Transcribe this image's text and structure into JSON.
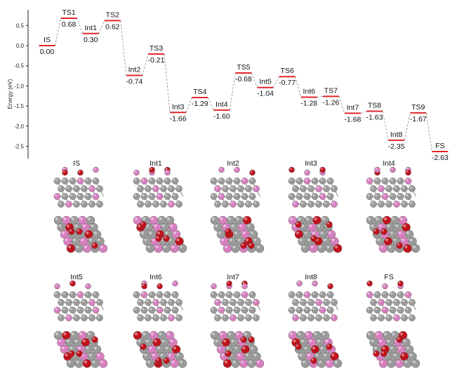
{
  "chart_data": {
    "type": "line",
    "ylabel": "Energy (eV)",
    "ylim": [
      -2.8,
      0.85
    ],
    "yticks": [
      0.5,
      0.0,
      -0.5,
      -1.0,
      -1.5,
      -2.0,
      -2.5
    ],
    "ytick_labels": [
      "0.5",
      "0.0",
      "-0.5",
      "-1.0",
      "-1.5",
      "-2.0",
      "-2.5"
    ],
    "grid": false,
    "levels": [
      {
        "name": "IS",
        "value": 0.0,
        "label": "0.00",
        "pos": 0
      },
      {
        "name": "TS1",
        "value": 0.68,
        "label": "0.68",
        "pos": 1
      },
      {
        "name": "Int1",
        "value": 0.3,
        "label": "0.30",
        "pos": 2
      },
      {
        "name": "TS2",
        "value": 0.62,
        "label": "0.62",
        "pos": 3
      },
      {
        "name": "Int2",
        "value": -0.74,
        "label": "-0.74",
        "pos": 4
      },
      {
        "name": "TS3",
        "value": -0.21,
        "label": "-0.21",
        "pos": 5
      },
      {
        "name": "Int3",
        "value": -1.66,
        "label": "-1.66",
        "pos": 6
      },
      {
        "name": "TS4",
        "value": -1.29,
        "label": "-1.29",
        "pos": 7
      },
      {
        "name": "Int4",
        "value": -1.6,
        "label": "-1.60",
        "pos": 8
      },
      {
        "name": "TS5",
        "value": -0.68,
        "label": "-0.68",
        "pos": 9
      },
      {
        "name": "Int5",
        "value": -1.04,
        "label": "-1.04",
        "pos": 10
      },
      {
        "name": "TS6",
        "value": -0.77,
        "label": "-0.77",
        "pos": 11
      },
      {
        "name": "Int6",
        "value": -1.28,
        "label": "-1.28",
        "pos": 12
      },
      {
        "name": "TS7",
        "value": -1.26,
        "label": "-1.26",
        "pos": 13
      },
      {
        "name": "Int7",
        "value": -1.68,
        "label": "-1.68",
        "pos": 14
      },
      {
        "name": "TS8",
        "value": -1.63,
        "label": "-1.63",
        "pos": 15
      },
      {
        "name": "Int8",
        "value": -2.35,
        "label": "-2.35",
        "pos": 16
      },
      {
        "name": "TS9",
        "value": -1.67,
        "label": "-1.67",
        "pos": 17
      },
      {
        "name": "FS",
        "value": -2.63,
        "label": "-2.63",
        "pos": 18
      }
    ],
    "level_color": "#e0262a",
    "connector_color": "#999999"
  },
  "structures": {
    "row1": [
      "IS",
      "Int1",
      "Int2",
      "Int3",
      "Int4"
    ],
    "row2": [
      "Int5",
      "Int6",
      "Int7",
      "Int8",
      "FS"
    ]
  },
  "atom_colors": {
    "metal": "#9a9a9a",
    "dopant": "#d77fbf",
    "oxygen": "#c0121c"
  }
}
